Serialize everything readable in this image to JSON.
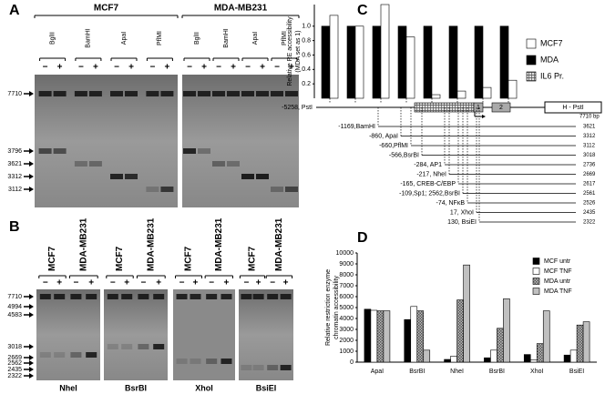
{
  "panel_labels": [
    "A",
    "B",
    "C",
    "D"
  ],
  "gels": {
    "signs": [
      "−",
      "+"
    ],
    "A": {
      "groups": [
        "MCF7",
        "MDA-MB231"
      ],
      "enzymes": [
        "BglII",
        "BamHI",
        "ApaI",
        "PflMI",
        "BglII",
        "BamHI",
        "ApaI",
        "PflMI"
      ],
      "markers": [
        "7710",
        "3796",
        "3621",
        "3312",
        "3112"
      ]
    },
    "B": {
      "groups": [
        "MCF7",
        "MDA-MB231"
      ],
      "enzymes": [
        "NheI",
        "BsrBI",
        "XhoI",
        "BsiEI"
      ],
      "markers": [
        "7710",
        "4994",
        "4583",
        "3018",
        "2669",
        "2562",
        "2435",
        "2322"
      ]
    }
  },
  "chart_data": [
    {
      "type": "bar",
      "y_label": [
        "Relative RE accessibility",
        "(MDA set as 1)"
      ],
      "categories": [
        null,
        null,
        null,
        null,
        null,
        null,
        null,
        null
      ],
      "series": [
        {
          "name": "MCF7",
          "color": "#ffffff",
          "values": [
            1.15,
            1.0,
            1.3,
            0.85,
            0.05,
            0.1,
            0.15,
            0.25
          ]
        },
        {
          "name": "MDA",
          "color": "#000000",
          "values": [
            1,
            1,
            1,
            1,
            1,
            1,
            1,
            1
          ]
        }
      ],
      "ylim": [
        0,
        1.3
      ],
      "yticks": [
        0.2,
        0.4,
        0.6,
        0.8,
        {
          "value": 1,
          "label": "1.0"
        }
      ],
      "legend": "right",
      "promoter_legend": "IL6 Pr.",
      "map": {
        "pst_left": "-5258, PstI",
        "pst_right": "H - PstI",
        "exons": [
          "1",
          "2"
        ],
        "bp_header": "7710 bp",
        "sites": [
          {
            "label": "-1169,BamHI",
            "bp": "3621"
          },
          {
            "label": "-860, ApaI",
            "bp": "3312"
          },
          {
            "label": "-660,PflMI",
            "bp": "3112"
          },
          {
            "label": "-566,BsrBI",
            "bp": "3018"
          },
          {
            "label": "-284, AP1",
            "bp": "2736"
          },
          {
            "label": "-217, NheI",
            "bp": "2669"
          },
          {
            "label": "-165, CREB-C/EBP",
            "bp": "2617"
          },
          {
            "label": "-109,Sp1; 2562,BsrBI",
            "bp": "2561"
          },
          {
            "label": "-74, NFκB",
            "bp": "2526"
          },
          {
            "label": "17, XhoI",
            "bp": "2435"
          },
          {
            "label": "130, BsiEI",
            "bp": "2322"
          }
        ]
      }
    },
    {
      "type": "bar",
      "y_label": [
        "Relative restriction enzyme",
        "chromatin accessibility"
      ],
      "categories": [
        "ApaI",
        "BsrBI",
        "NheI",
        "BsrBI",
        "XhoI",
        "BsiEI"
      ],
      "series": [
        {
          "name": "MCF untr",
          "color": "#000000",
          "values": [
            4850,
            3900,
            250,
            400,
            700,
            650
          ]
        },
        {
          "name": "MCF TNF",
          "color": "#ffffff",
          "values": [
            4750,
            5100,
            550,
            1100,
            200,
            1100
          ]
        },
        {
          "name": "MDA untr",
          "color": "#999999",
          "pattern": "checker",
          "values": [
            4700,
            4700,
            5700,
            3100,
            1700,
            3400
          ]
        },
        {
          "name": "MDA TNF",
          "color": "#c0c0c0",
          "values": [
            4700,
            1100,
            8900,
            5800,
            4700,
            3700
          ]
        }
      ],
      "ylim": [
        0,
        10000
      ],
      "yticks": [
        0,
        1000,
        2000,
        3000,
        4000,
        5000,
        6000,
        7000,
        8000,
        9000,
        10000
      ],
      "legend": "top-right"
    }
  ]
}
